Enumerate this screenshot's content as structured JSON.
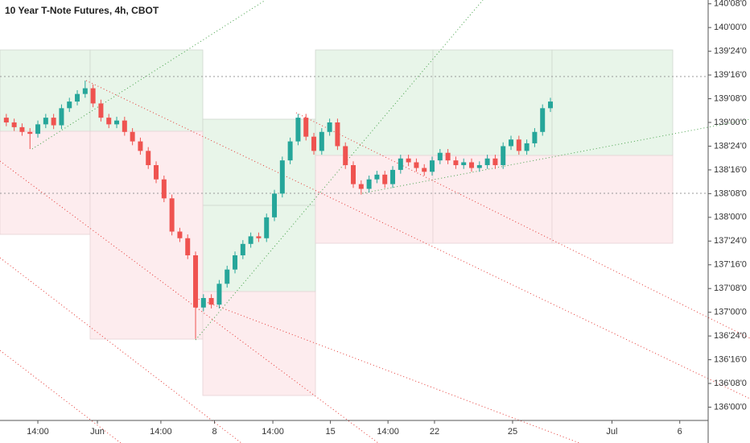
{
  "chart_data": {
    "type": "candlestick",
    "title": "10 Year T-Note Futures, 4h, CBOT",
    "up_color": "#26a69a",
    "down_color": "#ef5350",
    "xlim": [
      -0.8,
      89
    ],
    "xticks": [
      {
        "value": 4.0,
        "label": "14:00"
      },
      {
        "value": 11.55,
        "label": "Jun"
      },
      {
        "value": 19.6,
        "label": "14:00"
      },
      {
        "value": 26.4,
        "label": "8"
      },
      {
        "value": 33.8,
        "label": "14:00"
      },
      {
        "value": 41.1,
        "label": "15"
      },
      {
        "value": 48.4,
        "label": "14:00"
      },
      {
        "value": 54.3,
        "label": "22"
      },
      {
        "value": 64.2,
        "label": "25"
      },
      {
        "value": 76.8,
        "label": "Jul"
      },
      {
        "value": 85.4,
        "label": "6"
      }
    ],
    "ylim": [
      135.86,
      140.29
    ],
    "yticks": [
      {
        "value": 136.0,
        "label": "136'00'0"
      },
      {
        "value": 136.25,
        "label": "136'08'0"
      },
      {
        "value": 136.5,
        "label": "136'16'0"
      },
      {
        "value": 136.75,
        "label": "136'24'0"
      },
      {
        "value": 137.0,
        "label": "137'00'0"
      },
      {
        "value": 137.25,
        "label": "137'08'0"
      },
      {
        "value": 137.5,
        "label": "137'16'0"
      },
      {
        "value": 137.75,
        "label": "137'24'0"
      },
      {
        "value": 138.0,
        "label": "138'00'0"
      },
      {
        "value": 138.25,
        "label": "138'08'0"
      },
      {
        "value": 138.5,
        "label": "138'16'0"
      },
      {
        "value": 138.75,
        "label": "138'24'0"
      },
      {
        "value": 139.0,
        "label": "139'00'0"
      },
      {
        "value": 139.25,
        "label": "139'08'0"
      },
      {
        "value": 139.5,
        "label": "139'16'0"
      },
      {
        "value": 139.75,
        "label": "139'24'0"
      },
      {
        "value": 140.0,
        "label": "140'00'0"
      },
      {
        "value": 140.25,
        "label": "140'08'0"
      }
    ],
    "open": [
      139.05,
      139.0,
      138.95,
      138.9,
      138.88,
      138.98,
      139.05,
      138.97,
      139.15,
      139.22,
      139.3,
      139.36,
      139.2,
      139.05,
      138.98,
      139.02,
      138.9,
      138.8,
      138.7,
      138.55,
      138.4,
      138.2,
      137.85,
      137.78,
      137.6,
      137.05,
      137.15,
      137.08,
      137.3,
      137.45,
      137.6,
      137.72,
      137.8,
      137.78,
      138.0,
      138.25,
      138.6,
      138.8,
      139.05,
      138.85,
      138.7,
      138.9,
      139.0,
      138.75,
      138.55,
      138.35,
      138.3,
      138.4,
      138.45,
      138.35,
      138.5,
      138.62,
      138.58,
      138.52,
      138.48,
      138.6,
      138.68,
      138.6,
      138.55,
      138.58,
      138.52,
      138.55,
      138.62,
      138.55,
      138.75,
      138.82,
      138.7,
      138.78,
      138.9,
      139.15
    ],
    "high": [
      139.09,
      139.04,
      138.99,
      138.94,
      139.02,
      139.09,
      139.09,
      139.19,
      139.26,
      139.34,
      139.44,
      139.4,
      139.24,
      139.09,
      139.06,
      139.06,
      138.94,
      138.84,
      138.74,
      138.59,
      138.44,
      138.24,
      137.89,
      137.82,
      137.64,
      137.19,
      137.19,
      137.34,
      137.49,
      137.64,
      137.76,
      137.84,
      137.84,
      138.04,
      138.29,
      138.64,
      138.84,
      139.09,
      139.09,
      138.89,
      138.94,
      139.04,
      139.04,
      138.79,
      138.59,
      138.39,
      138.44,
      138.49,
      138.49,
      138.54,
      138.66,
      138.66,
      138.62,
      138.56,
      138.64,
      138.72,
      138.72,
      138.64,
      138.62,
      138.62,
      138.59,
      138.66,
      138.66,
      138.79,
      138.86,
      138.86,
      138.82,
      138.94,
      139.19,
      139.26
    ],
    "low": [
      138.96,
      138.91,
      138.86,
      138.72,
      138.84,
      138.94,
      138.93,
      138.93,
      139.11,
      139.18,
      139.26,
      139.16,
      139.01,
      138.94,
      138.94,
      138.86,
      138.76,
      138.66,
      138.51,
      138.36,
      138.16,
      137.81,
      137.74,
      137.56,
      136.72,
      137.01,
      137.04,
      137.04,
      137.26,
      137.41,
      137.56,
      137.68,
      137.74,
      137.74,
      137.96,
      138.21,
      138.56,
      138.76,
      138.81,
      138.66,
      138.66,
      138.86,
      138.71,
      138.51,
      138.31,
      138.24,
      138.26,
      138.36,
      138.31,
      138.31,
      138.46,
      138.54,
      138.48,
      138.44,
      138.44,
      138.56,
      138.56,
      138.51,
      138.51,
      138.48,
      138.48,
      138.51,
      138.51,
      138.51,
      138.71,
      138.66,
      138.66,
      138.74,
      138.86,
      139.11
    ],
    "close": [
      139.0,
      138.95,
      138.9,
      138.88,
      138.98,
      139.05,
      138.97,
      139.15,
      139.22,
      139.3,
      139.36,
      139.2,
      139.05,
      138.98,
      139.02,
      138.9,
      138.8,
      138.7,
      138.55,
      138.4,
      138.2,
      137.85,
      137.78,
      137.6,
      137.05,
      137.15,
      137.08,
      137.3,
      137.45,
      137.6,
      137.72,
      137.8,
      137.78,
      138.0,
      138.25,
      138.6,
      138.8,
      139.05,
      138.85,
      138.7,
      138.9,
      139.0,
      138.75,
      138.55,
      138.35,
      138.3,
      138.4,
      138.45,
      138.35,
      138.5,
      138.62,
      138.58,
      138.52,
      138.48,
      138.6,
      138.68,
      138.6,
      138.55,
      138.58,
      138.52,
      138.55,
      138.62,
      138.55,
      138.75,
      138.82,
      138.7,
      138.78,
      138.9,
      139.15,
      139.22
    ]
  }
}
